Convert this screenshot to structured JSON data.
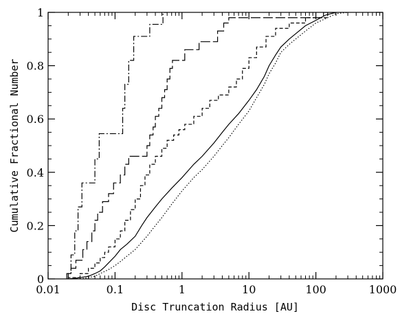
{
  "chart_data": {
    "type": "line",
    "title": "",
    "xlabel": "Disc Truncation Radius [AU]",
    "ylabel": "Cumulative Fractional Number",
    "xscale": "log",
    "xlim": [
      0.01,
      1000
    ],
    "ylim": [
      0,
      1
    ],
    "grid": false,
    "legend": "none",
    "x_ticks": [
      {
        "value": 0.01,
        "label": "0.01"
      },
      {
        "value": 0.1,
        "label": "0.1"
      },
      {
        "value": 1,
        "label": "1"
      },
      {
        "value": 10,
        "label": "10"
      },
      {
        "value": 100,
        "label": "100"
      },
      {
        "value": 1000,
        "label": "1000"
      }
    ],
    "y_ticks": [
      {
        "value": 0,
        "label": "0"
      },
      {
        "value": 0.2,
        "label": "0.2"
      },
      {
        "value": 0.4,
        "label": "0.4"
      },
      {
        "value": 0.6,
        "label": "0.6"
      },
      {
        "value": 0.8,
        "label": "0.8"
      },
      {
        "value": 1,
        "label": "1"
      }
    ],
    "series": [
      {
        "line_style": "dash-dot",
        "step": true,
        "points": [
          [
            0.02,
            0
          ],
          [
            0.02,
            0.02
          ],
          [
            0.022,
            0.02
          ],
          [
            0.022,
            0.09
          ],
          [
            0.025,
            0.09
          ],
          [
            0.025,
            0.18
          ],
          [
            0.028,
            0.18
          ],
          [
            0.028,
            0.27
          ],
          [
            0.032,
            0.27
          ],
          [
            0.032,
            0.36
          ],
          [
            0.05,
            0.36
          ],
          [
            0.05,
            0.45
          ],
          [
            0.058,
            0.45
          ],
          [
            0.058,
            0.545
          ],
          [
            0.13,
            0.545
          ],
          [
            0.13,
            0.64
          ],
          [
            0.14,
            0.64
          ],
          [
            0.14,
            0.73
          ],
          [
            0.16,
            0.73
          ],
          [
            0.16,
            0.82
          ],
          [
            0.19,
            0.82
          ],
          [
            0.19,
            0.91
          ],
          [
            0.33,
            0.91
          ],
          [
            0.33,
            0.955
          ],
          [
            0.52,
            0.955
          ],
          [
            0.52,
            1.0
          ],
          [
            0.6,
            1.0
          ]
        ]
      },
      {
        "line_style": "long-dash",
        "step": true,
        "points": [
          [
            0.019,
            0
          ],
          [
            0.019,
            0.02
          ],
          [
            0.022,
            0.02
          ],
          [
            0.022,
            0.04
          ],
          [
            0.026,
            0.04
          ],
          [
            0.026,
            0.07
          ],
          [
            0.033,
            0.07
          ],
          [
            0.033,
            0.11
          ],
          [
            0.038,
            0.11
          ],
          [
            0.038,
            0.14
          ],
          [
            0.045,
            0.14
          ],
          [
            0.045,
            0.18
          ],
          [
            0.05,
            0.18
          ],
          [
            0.05,
            0.22
          ],
          [
            0.055,
            0.22
          ],
          [
            0.055,
            0.25
          ],
          [
            0.065,
            0.25
          ],
          [
            0.065,
            0.29
          ],
          [
            0.08,
            0.29
          ],
          [
            0.08,
            0.32
          ],
          [
            0.095,
            0.32
          ],
          [
            0.095,
            0.36
          ],
          [
            0.12,
            0.36
          ],
          [
            0.12,
            0.39
          ],
          [
            0.14,
            0.39
          ],
          [
            0.14,
            0.43
          ],
          [
            0.16,
            0.43
          ],
          [
            0.16,
            0.46
          ],
          [
            0.3,
            0.46
          ],
          [
            0.3,
            0.5
          ],
          [
            0.33,
            0.5
          ],
          [
            0.33,
            0.54
          ],
          [
            0.37,
            0.54
          ],
          [
            0.37,
            0.57
          ],
          [
            0.4,
            0.57
          ],
          [
            0.4,
            0.61
          ],
          [
            0.45,
            0.61
          ],
          [
            0.45,
            0.64
          ],
          [
            0.5,
            0.64
          ],
          [
            0.5,
            0.68
          ],
          [
            0.55,
            0.68
          ],
          [
            0.55,
            0.71
          ],
          [
            0.6,
            0.71
          ],
          [
            0.6,
            0.75
          ],
          [
            0.66,
            0.75
          ],
          [
            0.66,
            0.79
          ],
          [
            0.72,
            0.79
          ],
          [
            0.72,
            0.82
          ],
          [
            1.1,
            0.82
          ],
          [
            1.1,
            0.86
          ],
          [
            1.8,
            0.86
          ],
          [
            1.8,
            0.89
          ],
          [
            3.4,
            0.89
          ],
          [
            3.4,
            0.93
          ],
          [
            4.2,
            0.93
          ],
          [
            4.2,
            0.96
          ],
          [
            5.0,
            0.96
          ],
          [
            5.0,
            0.98
          ],
          [
            130,
            0.98
          ],
          [
            130,
            1.0
          ],
          [
            200,
            1.0
          ]
        ]
      },
      {
        "line_style": "short-dash",
        "step": true,
        "points": [
          [
            0.02,
            0
          ],
          [
            0.02,
            0.005
          ],
          [
            0.03,
            0.005
          ],
          [
            0.03,
            0.02
          ],
          [
            0.04,
            0.02
          ],
          [
            0.04,
            0.04
          ],
          [
            0.05,
            0.04
          ],
          [
            0.05,
            0.06
          ],
          [
            0.06,
            0.06
          ],
          [
            0.06,
            0.08
          ],
          [
            0.07,
            0.08
          ],
          [
            0.07,
            0.1
          ],
          [
            0.08,
            0.1
          ],
          [
            0.08,
            0.12
          ],
          [
            0.1,
            0.12
          ],
          [
            0.1,
            0.15
          ],
          [
            0.12,
            0.15
          ],
          [
            0.12,
            0.18
          ],
          [
            0.14,
            0.18
          ],
          [
            0.14,
            0.22
          ],
          [
            0.17,
            0.22
          ],
          [
            0.17,
            0.26
          ],
          [
            0.2,
            0.26
          ],
          [
            0.2,
            0.3
          ],
          [
            0.24,
            0.3
          ],
          [
            0.24,
            0.35
          ],
          [
            0.28,
            0.35
          ],
          [
            0.28,
            0.39
          ],
          [
            0.33,
            0.39
          ],
          [
            0.33,
            0.43
          ],
          [
            0.4,
            0.43
          ],
          [
            0.4,
            0.46
          ],
          [
            0.5,
            0.46
          ],
          [
            0.5,
            0.49
          ],
          [
            0.6,
            0.49
          ],
          [
            0.6,
            0.52
          ],
          [
            0.75,
            0.52
          ],
          [
            0.75,
            0.54
          ],
          [
            0.9,
            0.54
          ],
          [
            0.9,
            0.56
          ],
          [
            1.1,
            0.56
          ],
          [
            1.1,
            0.58
          ],
          [
            1.5,
            0.58
          ],
          [
            1.5,
            0.61
          ],
          [
            2.0,
            0.61
          ],
          [
            2.0,
            0.64
          ],
          [
            2.6,
            0.64
          ],
          [
            2.6,
            0.67
          ],
          [
            3.5,
            0.67
          ],
          [
            3.5,
            0.69
          ],
          [
            5.0,
            0.69
          ],
          [
            5.0,
            0.72
          ],
          [
            6.5,
            0.72
          ],
          [
            6.5,
            0.75
          ],
          [
            8.0,
            0.75
          ],
          [
            8.0,
            0.79
          ],
          [
            10,
            0.79
          ],
          [
            10,
            0.83
          ],
          [
            13,
            0.83
          ],
          [
            13,
            0.87
          ],
          [
            18,
            0.87
          ],
          [
            18,
            0.91
          ],
          [
            25,
            0.91
          ],
          [
            25,
            0.94
          ],
          [
            40,
            0.94
          ],
          [
            40,
            0.96
          ],
          [
            70,
            0.96
          ],
          [
            70,
            0.98
          ],
          [
            150,
            0.98
          ],
          [
            150,
            1.0
          ],
          [
            200,
            1.0
          ]
        ]
      },
      {
        "line_style": "solid",
        "step": false,
        "points": [
          [
            0.02,
            0
          ],
          [
            0.025,
            0.002
          ],
          [
            0.03,
            0.005
          ],
          [
            0.04,
            0.01
          ],
          [
            0.05,
            0.02
          ],
          [
            0.06,
            0.03
          ],
          [
            0.07,
            0.045
          ],
          [
            0.08,
            0.06
          ],
          [
            0.1,
            0.085
          ],
          [
            0.12,
            0.11
          ],
          [
            0.15,
            0.13
          ],
          [
            0.2,
            0.16
          ],
          [
            0.25,
            0.2
          ],
          [
            0.3,
            0.23
          ],
          [
            0.4,
            0.27
          ],
          [
            0.5,
            0.3
          ],
          [
            0.7,
            0.34
          ],
          [
            1.0,
            0.38
          ],
          [
            1.5,
            0.43
          ],
          [
            2.0,
            0.46
          ],
          [
            3.0,
            0.51
          ],
          [
            4.0,
            0.55
          ],
          [
            5.0,
            0.58
          ],
          [
            7.0,
            0.62
          ],
          [
            10,
            0.67
          ],
          [
            13,
            0.71
          ],
          [
            17,
            0.76
          ],
          [
            20,
            0.8
          ],
          [
            25,
            0.84
          ],
          [
            30,
            0.87
          ],
          [
            40,
            0.9
          ],
          [
            50,
            0.92
          ],
          [
            70,
            0.95
          ],
          [
            100,
            0.97
          ],
          [
            140,
            0.99
          ],
          [
            200,
            1.0
          ]
        ]
      },
      {
        "line_style": "dotted",
        "step": false,
        "points": [
          [
            0.03,
            0
          ],
          [
            0.04,
            0.005
          ],
          [
            0.05,
            0.01
          ],
          [
            0.06,
            0.02
          ],
          [
            0.08,
            0.035
          ],
          [
            0.1,
            0.05
          ],
          [
            0.12,
            0.065
          ],
          [
            0.15,
            0.085
          ],
          [
            0.2,
            0.11
          ],
          [
            0.3,
            0.16
          ],
          [
            0.4,
            0.2
          ],
          [
            0.5,
            0.23
          ],
          [
            0.7,
            0.28
          ],
          [
            1.0,
            0.33
          ],
          [
            1.5,
            0.38
          ],
          [
            2.0,
            0.41
          ],
          [
            3.0,
            0.46
          ],
          [
            4.0,
            0.5
          ],
          [
            5.0,
            0.53
          ],
          [
            7.0,
            0.58
          ],
          [
            10,
            0.63
          ],
          [
            13,
            0.68
          ],
          [
            17,
            0.73
          ],
          [
            20,
            0.77
          ],
          [
            25,
            0.81
          ],
          [
            30,
            0.85
          ],
          [
            40,
            0.88
          ],
          [
            50,
            0.9
          ],
          [
            70,
            0.93
          ],
          [
            100,
            0.96
          ],
          [
            150,
            0.98
          ],
          [
            200,
            0.995
          ],
          [
            300,
            1.0
          ]
        ]
      }
    ]
  }
}
